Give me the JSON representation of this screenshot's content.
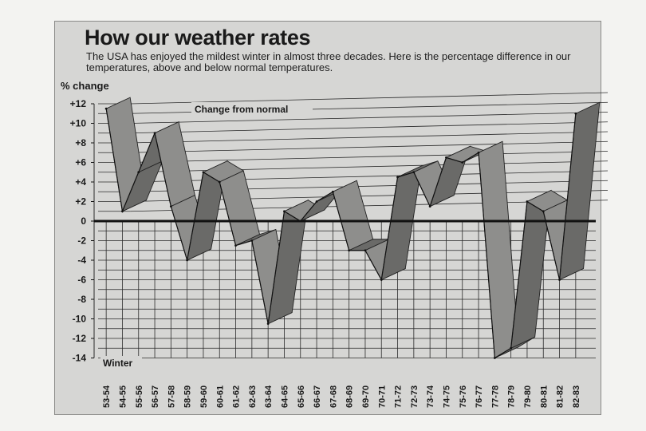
{
  "chart_data": {
    "type": "line",
    "title": "How our weather rates",
    "subtitle": "The USA has enjoyed the mildest winter in almost three decades. Here is the percentage difference in our temperatures, above and below normal temperatures.",
    "ylabel": "% change",
    "xlabel": "Winter",
    "series_label": "Change from normal",
    "ylim": [
      -14,
      12
    ],
    "yticks": [
      "+12",
      "+10",
      "+8",
      "+6",
      "+4",
      "+2",
      "0",
      "-2",
      "-4",
      "-6",
      "-8",
      "-10",
      "-12",
      "-14"
    ],
    "categories": [
      "53-54",
      "54-55",
      "55-56",
      "56-57",
      "57-58",
      "58-59",
      "59-60",
      "60-61",
      "61-62",
      "62-63",
      "63-64",
      "64-65",
      "65-66",
      "66-67",
      "67-68",
      "68-69",
      "69-70",
      "70-71",
      "71-72",
      "72-73",
      "73-74",
      "74-75",
      "75-76",
      "76-77",
      "77-78",
      "78-79",
      "79-80",
      "80-81",
      "81-82",
      "82-83"
    ],
    "values": [
      11.5,
      1,
      5,
      9,
      1.5,
      -4,
      5,
      4,
      -2.5,
      -2,
      -10.5,
      1,
      0,
      2,
      3,
      -3,
      -3,
      -6,
      4.5,
      5,
      1.5,
      6.5,
      6,
      7,
      -14,
      -13,
      2,
      1,
      -6,
      11
    ]
  },
  "colors": {
    "band": "#8e8e8c",
    "band_dark": "#6a6a68",
    "grid": "#2a2a2a",
    "bg": "#d6d6d4"
  }
}
